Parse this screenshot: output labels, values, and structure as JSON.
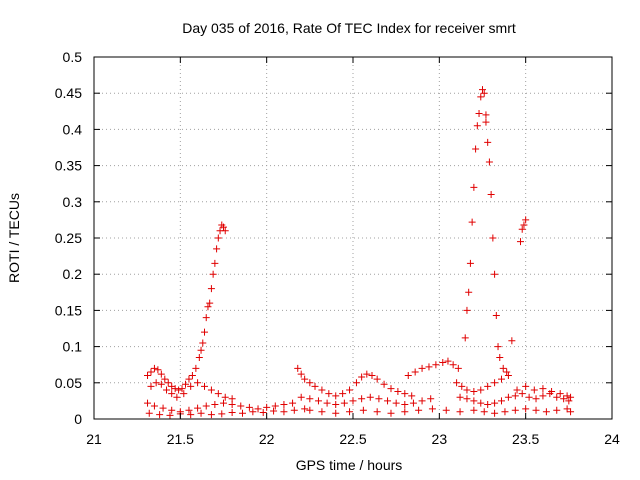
{
  "chart_data": {
    "type": "scatter",
    "title": "Day 035 of 2016, Rate Of TEC Index for receiver smrt",
    "xlabel": "GPS time / hours",
    "ylabel": "ROTI / TECUs",
    "xlim": [
      21,
      24
    ],
    "ylim": [
      0,
      0.5
    ],
    "grid": true,
    "marker": "+",
    "color": "#e00000",
    "x_ticks": [
      21,
      21.5,
      22,
      22.5,
      23,
      23.5,
      24
    ],
    "x_tick_labels": [
      "21",
      "21.5",
      "22",
      "22.5",
      "23",
      "23.5",
      "24"
    ],
    "y_ticks": [
      0,
      0.05,
      0.1,
      0.15,
      0.2,
      0.25,
      0.3,
      0.35,
      0.4,
      0.45,
      0.5
    ],
    "y_tick_labels": [
      "0",
      "0.05",
      "0.1",
      "0.15",
      "0.2",
      "0.25",
      "0.3",
      "0.35",
      "0.4",
      "0.45",
      "0.5"
    ],
    "series": [
      {
        "name": "ROTI",
        "points": [
          [
            21.31,
            0.06
          ],
          [
            21.33,
            0.065
          ],
          [
            21.35,
            0.07
          ],
          [
            21.37,
            0.068
          ],
          [
            21.39,
            0.062
          ],
          [
            21.41,
            0.055
          ],
          [
            21.43,
            0.05
          ],
          [
            21.45,
            0.045
          ],
          [
            21.47,
            0.042
          ],
          [
            21.49,
            0.04
          ],
          [
            21.51,
            0.042
          ],
          [
            21.53,
            0.048
          ],
          [
            21.55,
            0.055
          ],
          [
            21.57,
            0.06
          ],
          [
            21.59,
            0.07
          ],
          [
            21.61,
            0.085
          ],
          [
            21.62,
            0.095
          ],
          [
            21.63,
            0.105
          ],
          [
            21.64,
            0.12
          ],
          [
            21.65,
            0.14
          ],
          [
            21.66,
            0.155
          ],
          [
            21.67,
            0.16
          ],
          [
            21.68,
            0.18
          ],
          [
            21.69,
            0.2
          ],
          [
            21.7,
            0.215
          ],
          [
            21.71,
            0.235
          ],
          [
            21.72,
            0.25
          ],
          [
            21.73,
            0.26
          ],
          [
            21.74,
            0.268
          ],
          [
            21.75,
            0.265
          ],
          [
            21.76,
            0.26
          ],
          [
            21.33,
            0.045
          ],
          [
            21.36,
            0.05
          ],
          [
            21.39,
            0.048
          ],
          [
            21.42,
            0.04
          ],
          [
            21.45,
            0.035
          ],
          [
            21.48,
            0.03
          ],
          [
            21.52,
            0.035
          ],
          [
            21.56,
            0.045
          ],
          [
            21.6,
            0.05
          ],
          [
            21.64,
            0.045
          ],
          [
            21.68,
            0.04
          ],
          [
            21.72,
            0.035
          ],
          [
            21.76,
            0.03
          ],
          [
            21.8,
            0.028
          ],
          [
            21.31,
            0.022
          ],
          [
            21.35,
            0.018
          ],
          [
            21.4,
            0.015
          ],
          [
            21.45,
            0.012
          ],
          [
            21.5,
            0.01
          ],
          [
            21.55,
            0.012
          ],
          [
            21.6,
            0.015
          ],
          [
            21.65,
            0.018
          ],
          [
            21.7,
            0.02
          ],
          [
            21.75,
            0.022
          ],
          [
            21.8,
            0.02
          ],
          [
            21.85,
            0.018
          ],
          [
            21.9,
            0.016
          ],
          [
            21.95,
            0.014
          ],
          [
            22.0,
            0.016
          ],
          [
            22.05,
            0.018
          ],
          [
            22.1,
            0.02
          ],
          [
            22.15,
            0.022
          ],
          [
            21.32,
            0.008
          ],
          [
            21.38,
            0.006
          ],
          [
            21.44,
            0.005
          ],
          [
            21.5,
            0.007
          ],
          [
            21.56,
            0.006
          ],
          [
            21.62,
            0.008
          ],
          [
            21.68,
            0.006
          ],
          [
            21.74,
            0.007
          ],
          [
            21.8,
            0.009
          ],
          [
            21.86,
            0.008
          ],
          [
            21.92,
            0.01
          ],
          [
            21.98,
            0.009
          ],
          [
            22.04,
            0.011
          ],
          [
            22.1,
            0.01
          ],
          [
            22.16,
            0.012
          ],
          [
            22.22,
            0.014
          ],
          [
            22.18,
            0.07
          ],
          [
            22.2,
            0.062
          ],
          [
            22.22,
            0.055
          ],
          [
            22.25,
            0.05
          ],
          [
            22.28,
            0.045
          ],
          [
            22.32,
            0.04
          ],
          [
            22.36,
            0.035
          ],
          [
            22.4,
            0.032
          ],
          [
            22.44,
            0.035
          ],
          [
            22.48,
            0.04
          ],
          [
            22.52,
            0.05
          ],
          [
            22.55,
            0.058
          ],
          [
            22.58,
            0.062
          ],
          [
            22.61,
            0.06
          ],
          [
            22.64,
            0.055
          ],
          [
            22.68,
            0.048
          ],
          [
            22.72,
            0.042
          ],
          [
            22.76,
            0.038
          ],
          [
            22.8,
            0.035
          ],
          [
            22.84,
            0.032
          ],
          [
            22.2,
            0.03
          ],
          [
            22.25,
            0.028
          ],
          [
            22.3,
            0.025
          ],
          [
            22.35,
            0.022
          ],
          [
            22.4,
            0.02
          ],
          [
            22.45,
            0.022
          ],
          [
            22.5,
            0.025
          ],
          [
            22.55,
            0.028
          ],
          [
            22.6,
            0.03
          ],
          [
            22.65,
            0.028
          ],
          [
            22.7,
            0.025
          ],
          [
            22.75,
            0.022
          ],
          [
            22.8,
            0.02
          ],
          [
            22.85,
            0.022
          ],
          [
            22.9,
            0.025
          ],
          [
            22.95,
            0.028
          ],
          [
            22.25,
            0.012
          ],
          [
            22.32,
            0.01
          ],
          [
            22.4,
            0.008
          ],
          [
            22.48,
            0.01
          ],
          [
            22.56,
            0.012
          ],
          [
            22.64,
            0.01
          ],
          [
            22.72,
            0.008
          ],
          [
            22.8,
            0.01
          ],
          [
            22.88,
            0.012
          ],
          [
            22.96,
            0.014
          ],
          [
            23.04,
            0.012
          ],
          [
            23.12,
            0.01
          ],
          [
            22.82,
            0.06
          ],
          [
            22.86,
            0.065
          ],
          [
            22.9,
            0.07
          ],
          [
            22.94,
            0.072
          ],
          [
            22.98,
            0.075
          ],
          [
            23.02,
            0.078
          ],
          [
            23.05,
            0.08
          ],
          [
            23.08,
            0.075
          ],
          [
            23.11,
            0.07
          ],
          [
            23.15,
            0.112
          ],
          [
            23.16,
            0.15
          ],
          [
            23.17,
            0.175
          ],
          [
            23.18,
            0.215
          ],
          [
            23.19,
            0.272
          ],
          [
            23.2,
            0.32
          ],
          [
            23.21,
            0.373
          ],
          [
            23.22,
            0.405
          ],
          [
            23.23,
            0.422
          ],
          [
            23.24,
            0.445
          ],
          [
            23.25,
            0.455
          ],
          [
            23.26,
            0.45
          ],
          [
            23.27,
            0.42
          ],
          [
            23.27,
            0.41
          ],
          [
            23.28,
            0.382
          ],
          [
            23.29,
            0.355
          ],
          [
            23.3,
            0.31
          ],
          [
            23.31,
            0.25
          ],
          [
            23.32,
            0.2
          ],
          [
            23.33,
            0.143
          ],
          [
            23.34,
            0.1
          ],
          [
            23.35,
            0.085
          ],
          [
            23.37,
            0.07
          ],
          [
            23.39,
            0.065
          ],
          [
            23.1,
            0.05
          ],
          [
            23.13,
            0.045
          ],
          [
            23.16,
            0.04
          ],
          [
            23.2,
            0.038
          ],
          [
            23.24,
            0.04
          ],
          [
            23.28,
            0.045
          ],
          [
            23.32,
            0.05
          ],
          [
            23.36,
            0.055
          ],
          [
            23.4,
            0.06
          ],
          [
            23.42,
            0.108
          ],
          [
            23.12,
            0.03
          ],
          [
            23.16,
            0.028
          ],
          [
            23.2,
            0.025
          ],
          [
            23.24,
            0.022
          ],
          [
            23.28,
            0.02
          ],
          [
            23.32,
            0.022
          ],
          [
            23.36,
            0.025
          ],
          [
            23.4,
            0.03
          ],
          [
            23.44,
            0.032
          ],
          [
            23.48,
            0.035
          ],
          [
            23.52,
            0.03
          ],
          [
            23.56,
            0.028
          ],
          [
            23.6,
            0.032
          ],
          [
            23.64,
            0.035
          ],
          [
            23.68,
            0.03
          ],
          [
            23.72,
            0.028
          ],
          [
            23.75,
            0.025
          ],
          [
            23.47,
            0.245
          ],
          [
            23.48,
            0.262
          ],
          [
            23.49,
            0.268
          ],
          [
            23.5,
            0.275
          ],
          [
            23.2,
            0.012
          ],
          [
            23.26,
            0.01
          ],
          [
            23.32,
            0.008
          ],
          [
            23.38,
            0.01
          ],
          [
            23.44,
            0.012
          ],
          [
            23.5,
            0.014
          ],
          [
            23.56,
            0.012
          ],
          [
            23.62,
            0.01
          ],
          [
            23.68,
            0.012
          ],
          [
            23.74,
            0.014
          ],
          [
            23.76,
            0.01
          ],
          [
            23.45,
            0.04
          ],
          [
            23.5,
            0.045
          ],
          [
            23.55,
            0.04
          ],
          [
            23.6,
            0.042
          ],
          [
            23.65,
            0.038
          ],
          [
            23.7,
            0.035
          ],
          [
            23.74,
            0.032
          ],
          [
            23.76,
            0.03
          ]
        ]
      }
    ]
  }
}
